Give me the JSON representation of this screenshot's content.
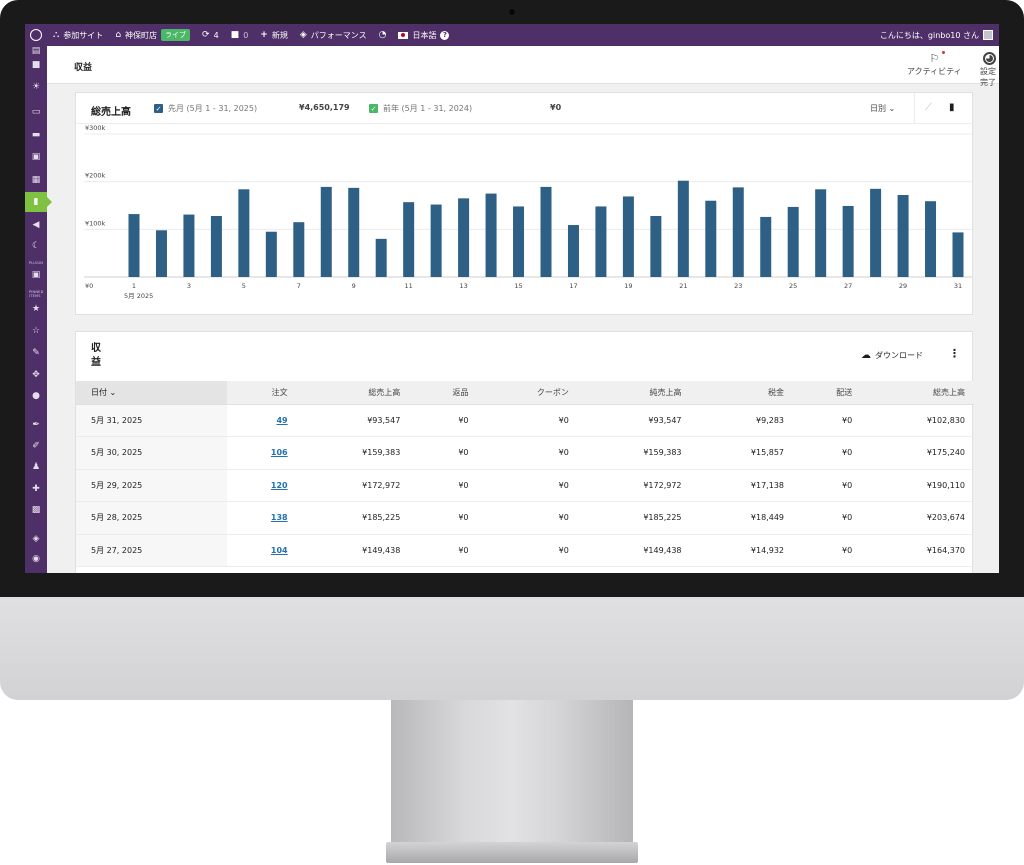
{
  "admin_bar": {
    "site": "参加サイト",
    "store": "神保町店",
    "live": "ライブ",
    "updates": "4",
    "comments": "0",
    "new": "新規",
    "performance": "パフォーマンス",
    "language": "日本語",
    "greeting": "こんにちは、ginbo10 さん"
  },
  "sidebar": {
    "tag_1": "PLUGIN",
    "tag_2": "PINNED ITEMS"
  },
  "header": {
    "title": "収益",
    "activity": "アクティビティ",
    "setup": "設定完了"
  },
  "chart_card": {
    "title": "総売上高",
    "legend": [
      {
        "label": "先月 (5月 1 - 31, 2025)",
        "total": "¥4,650,179",
        "color": "#2e5f85"
      },
      {
        "label": "前年 (5月 1 - 31, 2024)",
        "total": "¥0",
        "color": "#4ab866"
      }
    ],
    "interval": "日別"
  },
  "chart_data": {
    "type": "bar",
    "title": "",
    "x": [
      1,
      2,
      3,
      4,
      5,
      6,
      7,
      8,
      9,
      10,
      11,
      12,
      13,
      14,
      15,
      16,
      17,
      18,
      19,
      20,
      21,
      22,
      23,
      24,
      25,
      26,
      27,
      28,
      29,
      30,
      31
    ],
    "tick_labels": [
      "1",
      "3",
      "5",
      "7",
      "9",
      "11",
      "13",
      "15",
      "17",
      "19",
      "21",
      "23",
      "25",
      "27",
      "29",
      "31"
    ],
    "first_tick_sublabel": "5月 2025",
    "y_tick_labels": [
      "¥0",
      "¥100k",
      "¥200k",
      "¥300k"
    ],
    "ylim": [
      0,
      300000
    ],
    "grid": true,
    "series": [
      {
        "name": "先月 (5月 1 - 31, 2025)",
        "color": "#2e5f85",
        "values": [
          132000,
          98000,
          131000,
          128000,
          184000,
          95000,
          115000,
          189000,
          187000,
          80000,
          157000,
          152000,
          165000,
          175000,
          148000,
          189000,
          109000,
          148000,
          169000,
          128000,
          202000,
          160000,
          188000,
          126000,
          147000,
          184000,
          149000,
          185000,
          172000,
          159000,
          93547
        ]
      }
    ]
  },
  "table_card": {
    "title": "収益",
    "download": "ダウンロード",
    "columns": [
      "日付",
      "注文",
      "総売上高",
      "返品",
      "クーポン",
      "純売上高",
      "税金",
      "配送",
      "総売上高"
    ],
    "rows": [
      {
        "date": "5月 31, 2025",
        "orders": "49",
        "gross": "¥93,547",
        "returns": "¥0",
        "coupons": "¥0",
        "net": "¥93,547",
        "tax": "¥9,283",
        "shipping": "¥0",
        "total": "¥102,830"
      },
      {
        "date": "5月 30, 2025",
        "orders": "106",
        "gross": "¥159,383",
        "returns": "¥0",
        "coupons": "¥0",
        "net": "¥159,383",
        "tax": "¥15,857",
        "shipping": "¥0",
        "total": "¥175,240"
      },
      {
        "date": "5月 29, 2025",
        "orders": "120",
        "gross": "¥172,972",
        "returns": "¥0",
        "coupons": "¥0",
        "net": "¥172,972",
        "tax": "¥17,138",
        "shipping": "¥0",
        "total": "¥190,110"
      },
      {
        "date": "5月 28, 2025",
        "orders": "138",
        "gross": "¥185,225",
        "returns": "¥0",
        "coupons": "¥0",
        "net": "¥185,225",
        "tax": "¥18,449",
        "shipping": "¥0",
        "total": "¥203,674"
      },
      {
        "date": "5月 27, 2025",
        "orders": "104",
        "gross": "¥149,438",
        "returns": "¥0",
        "coupons": "¥0",
        "net": "¥149,438",
        "tax": "¥14,932",
        "shipping": "¥0",
        "total": "¥164,370"
      }
    ]
  }
}
